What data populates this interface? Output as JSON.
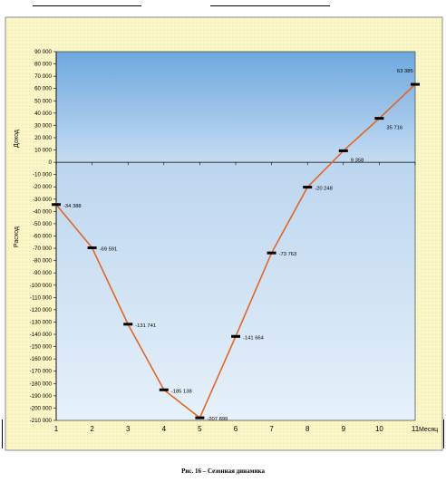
{
  "chart_data": {
    "type": "line",
    "title": "",
    "xlabel": "Месяц",
    "ylabel_upper": "Доход",
    "ylabel_lower": "Расход",
    "x": [
      1,
      2,
      3,
      4,
      5,
      6,
      7,
      8,
      9,
      10,
      11
    ],
    "values": [
      -34388,
      -69591,
      -131741,
      -185138,
      -207899,
      -141664,
      -73763,
      -20248,
      9358,
      35716,
      63385
    ],
    "data_labels": [
      "-34 388",
      "-69 591",
      "-131 741",
      "-185 138",
      "-207 899",
      "-141 664",
      "-73 763",
      "-20 248",
      "9 358",
      "35 716",
      "63 385"
    ],
    "ylim": [
      -210000,
      90000
    ],
    "ytick_step": 10000,
    "yticks": [
      "90 000",
      "80 000",
      "70 000",
      "60 000",
      "50 000",
      "40 000",
      "30 000",
      "20 000",
      "10 000",
      "0",
      "-10 000",
      "-20 000",
      "-30 000",
      "-40 000",
      "-50 000",
      "-60 000",
      "-70 000",
      "-80 000",
      "-90 000",
      "-100 000",
      "-110 000",
      "-120 000",
      "-130 000",
      "-140 000",
      "-150 000",
      "-160 000",
      "-170 000",
      "-180 000",
      "-190 000",
      "-200 000",
      "-210 000"
    ],
    "xticks": [
      "1",
      "2",
      "3",
      "4",
      "5",
      "6",
      "7",
      "8",
      "9",
      "10",
      "11"
    ],
    "grid": false,
    "legend": "none",
    "colors": {
      "line": "#e8641e",
      "marker": "#000000",
      "positive_region_top": "#6ea8e0",
      "positive_region_bottom": "#c4dcf2",
      "negative_region_top": "#bcd6ef",
      "negative_region_bottom": "#e6f1fa",
      "outer_background": "#f9f5c4"
    }
  },
  "caption": "Рис. 16 – Сезонная динамика"
}
